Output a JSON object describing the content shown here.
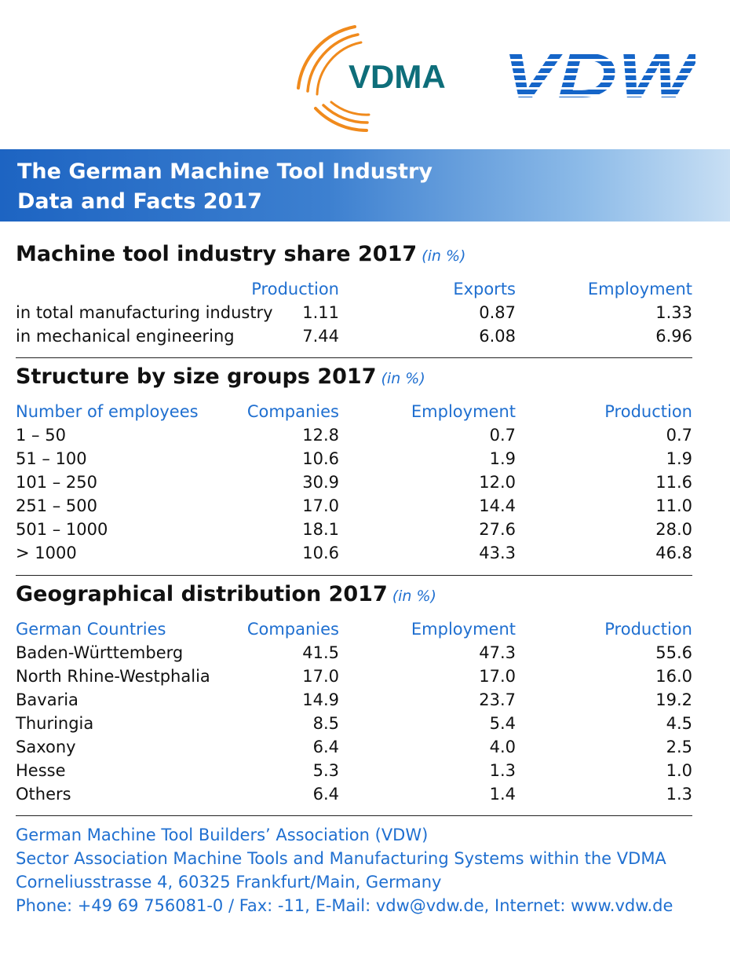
{
  "logos": {
    "vdma": "VDMA",
    "vdw": "VDW"
  },
  "banner": {
    "line1": "The German Machine Tool Industry",
    "line2": "Data and Facts 2017"
  },
  "share": {
    "title": "Machine tool industry share 2017",
    "unit": "(in %)",
    "headers": [
      "",
      "Production",
      "Exports",
      "Employment"
    ],
    "rows": [
      [
        "in total manufacturing industry",
        "1.11",
        "0.87",
        "1.33"
      ],
      [
        "in mechanical engineering",
        "7.44",
        "6.08",
        "6.96"
      ]
    ]
  },
  "size": {
    "title": "Structure by size groups 2017",
    "unit": "(in %)",
    "headers": [
      "Number of employees",
      "Companies",
      "Employment",
      "Production"
    ],
    "rows": [
      [
        "1 – 50",
        "12.8",
        "0.7",
        "0.7"
      ],
      [
        "51 – 100",
        "10.6",
        "1.9",
        "1.9"
      ],
      [
        "101 – 250",
        "30.9",
        "12.0",
        "11.6"
      ],
      [
        "251 – 500",
        "17.0",
        "14.4",
        "11.0"
      ],
      [
        "501 – 1000",
        "18.1",
        "27.6",
        "28.0"
      ],
      [
        "> 1000",
        "10.6",
        "43.3",
        "46.8"
      ]
    ]
  },
  "geo": {
    "title": "Geographical distribution 2017",
    "unit": "(in %)",
    "headers": [
      "German Countries",
      "Companies",
      "Employment",
      "Production"
    ],
    "rows": [
      [
        "Baden-Württemberg",
        "41.5",
        "47.3",
        "55.6"
      ],
      [
        "North Rhine-Westphalia",
        "17.0",
        "17.0",
        "16.0"
      ],
      [
        "Bavaria",
        "14.9",
        "23.7",
        "19.2"
      ],
      [
        "Thuringia",
        "8.5",
        "5.4",
        "4.5"
      ],
      [
        "Saxony",
        "6.4",
        "4.0",
        "2.5"
      ],
      [
        "Hesse",
        "5.3",
        "1.3",
        "1.0"
      ],
      [
        "Others",
        "6.4",
        "1.4",
        "1.3"
      ]
    ]
  },
  "footer": {
    "line1": "German Machine Tool Builders’ Association (VDW)",
    "line2": "Sector Association Machine Tools and Manufacturing Systems within the VDMA",
    "line3": "Corneliusstrasse 4, 60325 Frankfurt/Main, Germany",
    "line4": "Phone: +49 69 756081-0 / Fax: -11, E-Mail: vdw@vdw.de, Internet: www.vdw.de"
  },
  "colors": {
    "accent_blue": "#1f6fd0",
    "vdma_orange": "#f08a1c",
    "vdma_teal": "#0e6e7a",
    "vdw_blue": "#1565c8"
  }
}
